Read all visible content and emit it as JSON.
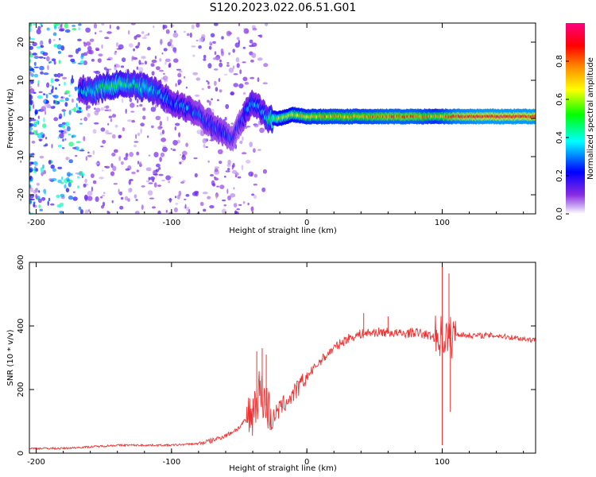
{
  "title": "S120.2023.022.06.51.G01",
  "chart_data": [
    {
      "type": "heatmap",
      "xlabel": "Height of straight line (km)",
      "ylabel": "Frequency (Hz)",
      "xlim": [
        -205,
        169
      ],
      "ylim": [
        -25,
        25
      ],
      "xticks": [
        -200,
        -100,
        0,
        100
      ],
      "yticks": [
        -20,
        -10,
        0,
        10,
        20
      ],
      "colorbar": {
        "label": "Normalized spectral amplitude",
        "range": [
          0,
          1
        ],
        "ticks": [
          0.0,
          0.2,
          0.4,
          0.6,
          0.8
        ],
        "colors": [
          "#ffffff",
          "#8a2be2",
          "#0000ff",
          "#00ffff",
          "#00ff00",
          "#ffff00",
          "#ff8000",
          "#ff0000",
          "#ff0080"
        ]
      },
      "ridge": {
        "x": [
          -168,
          -160,
          -150,
          -140,
          -130,
          -120,
          -110,
          -100,
          -90,
          -80,
          -70,
          -60,
          -55,
          -50,
          -45,
          -40,
          -35,
          -30,
          -25,
          -20,
          -10,
          0,
          20,
          40,
          60,
          80,
          95,
          100,
          110,
          130,
          150,
          169
        ],
        "y": [
          8,
          7,
          8,
          9,
          9,
          8,
          7,
          4,
          3,
          1,
          -2,
          -4,
          -5,
          -2,
          2,
          4,
          3,
          0,
          0,
          0,
          1,
          0.5,
          0.5,
          0.5,
          0.5,
          0.5,
          0.5,
          0.5,
          0.5,
          0.5,
          0.5,
          0.5
        ],
        "amplitude": [
          0.3,
          0.4,
          0.45,
          0.5,
          0.4,
          0.45,
          0.35,
          0.3,
          0.3,
          0.25,
          0.25,
          0.25,
          0.2,
          0.2,
          0.3,
          0.35,
          0.3,
          0.35,
          0.55,
          0.6,
          0.65,
          0.7,
          0.75,
          0.75,
          0.8,
          0.8,
          0.7,
          0.75,
          0.85,
          0.9,
          0.9,
          0.9
        ]
      },
      "scatter_noise_region": [
        -205,
        -30
      ]
    },
    {
      "type": "line",
      "xlabel": "Height of straight line (km)",
      "ylabel": "SNR (10 * v/v)",
      "xlim": [
        -205,
        169
      ],
      "ylim": [
        0,
        600
      ],
      "xticks": [
        -200,
        -100,
        0,
        100
      ],
      "yticks": [
        0,
        200,
        400,
        600
      ],
      "color": "#ee3333",
      "x": [
        -205,
        -180,
        -160,
        -140,
        -120,
        -100,
        -80,
        -70,
        -60,
        -50,
        -40,
        -35,
        -30,
        -25,
        -20,
        -10,
        0,
        10,
        20,
        30,
        40,
        50,
        60,
        70,
        80,
        90,
        95,
        100,
        105,
        110,
        120,
        140,
        160,
        169
      ],
      "y": [
        15,
        15,
        20,
        25,
        25,
        25,
        30,
        40,
        55,
        80,
        130,
        200,
        150,
        110,
        140,
        185,
        240,
        290,
        330,
        360,
        375,
        380,
        380,
        375,
        380,
        370,
        365,
        370,
        360,
        375,
        370,
        370,
        360,
        355
      ],
      "spikes": [
        {
          "x": -37,
          "y": 320
        },
        {
          "x": -33,
          "y": 330
        },
        {
          "x": -30,
          "y": 310
        },
        {
          "x": 42,
          "y": 440
        },
        {
          "x": 60,
          "y": 430
        },
        {
          "x": 100,
          "y": 600
        },
        {
          "x": 100,
          "y": 25
        },
        {
          "x": 105,
          "y": 565
        },
        {
          "x": 106,
          "y": 130
        }
      ]
    }
  ]
}
